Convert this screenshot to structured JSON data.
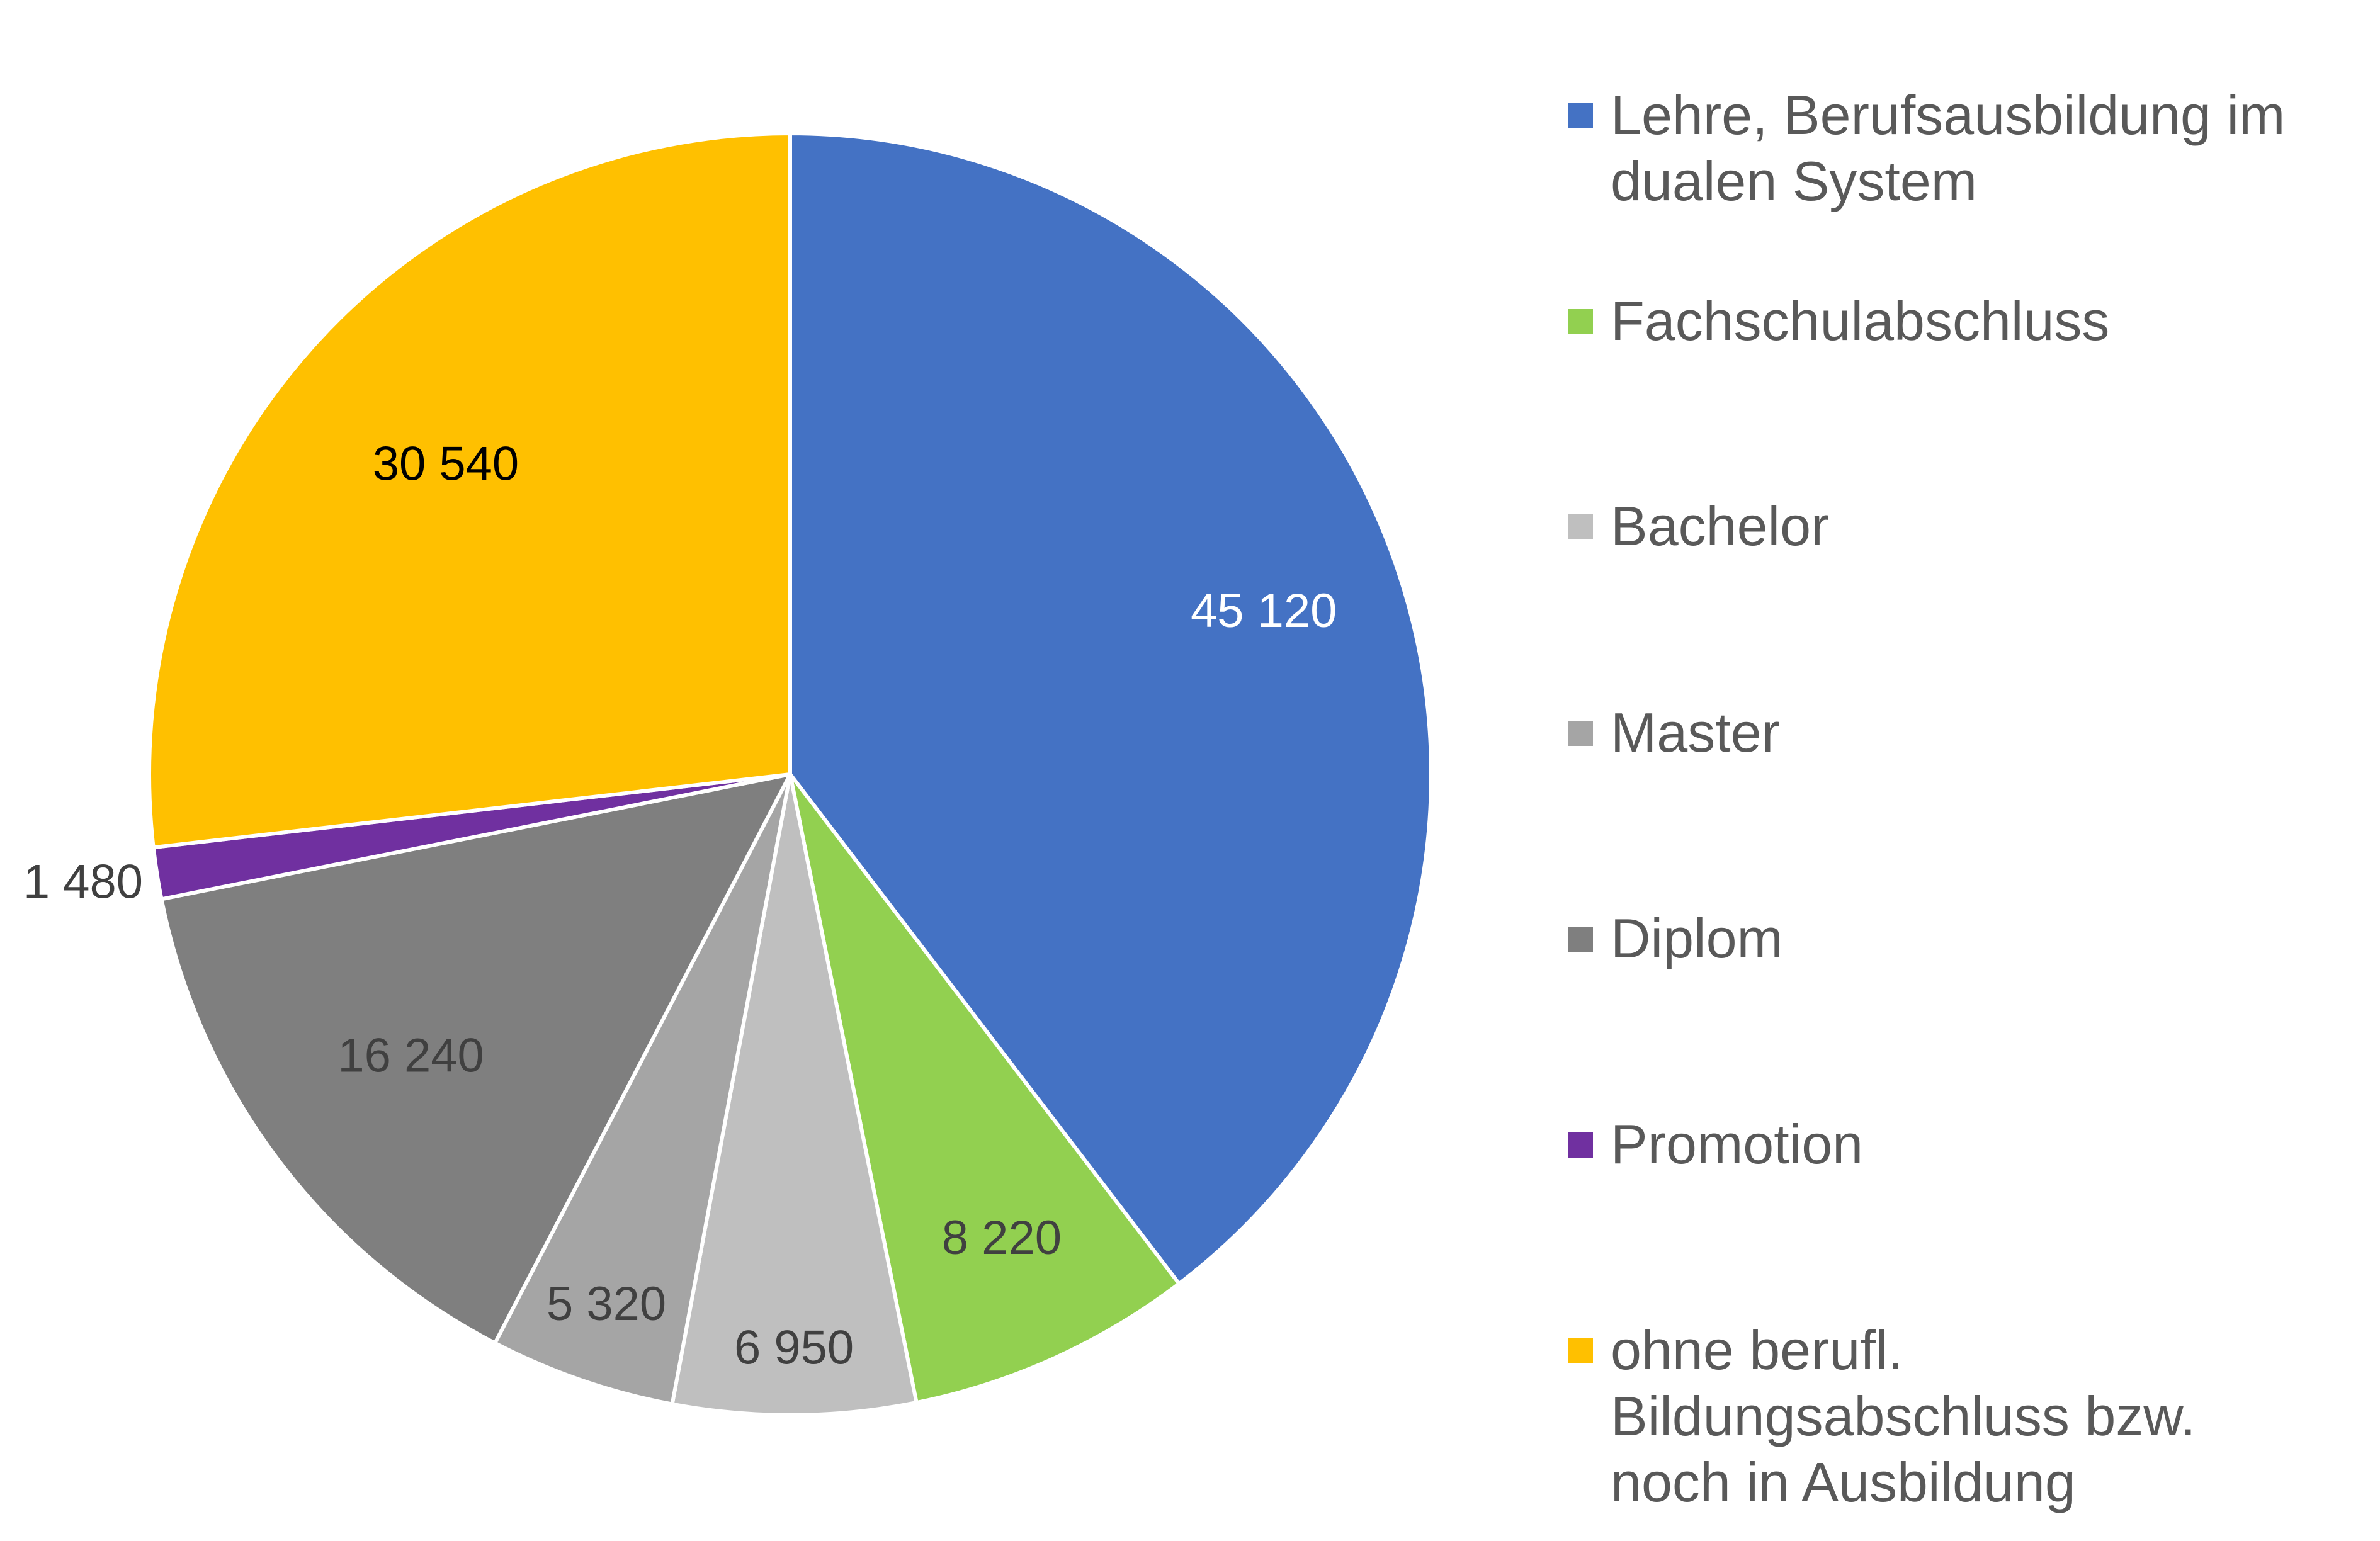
{
  "chart_data": {
    "type": "pie",
    "title": "",
    "categories": [
      "Lehre, Berufsausbildung im dualen System",
      "Fachschulabschluss",
      "Bachelor",
      "Master",
      "Diplom",
      "Promotion",
      "ohne berufl. Bildungsabschluss bzw. noch in Ausbildung"
    ],
    "values": [
      45120,
      8220,
      6950,
      5320,
      16240,
      1480,
      30540
    ],
    "value_labels": [
      "45 120",
      "8 220",
      "6 950",
      "5 320",
      "16 240",
      "1 480",
      "30 540"
    ],
    "colors": [
      "#4472C4",
      "#92D050",
      "#BFBFBF",
      "#A5A5A5",
      "#7F7F7F",
      "#7030A0",
      "#FFC000"
    ],
    "label_colors": [
      "#FFFFFF",
      "#404040",
      "#404040",
      "#404040",
      "#404040",
      "#404040",
      "#000000"
    ],
    "legend_placement": "right",
    "slice_order": "clockwise from 12 o'clock"
  },
  "legend": {
    "items": [
      {
        "label": "Lehre, Berufsausbildung im\ndualen System",
        "color": "#4472C4"
      },
      {
        "label": "Fachschulabschluss",
        "color": "#92D050"
      },
      {
        "label": "Bachelor",
        "color": "#BFBFBF"
      },
      {
        "label": "Master",
        "color": "#A5A5A5"
      },
      {
        "label": "Diplom",
        "color": "#7F7F7F"
      },
      {
        "label": "Promotion",
        "color": "#7030A0"
      },
      {
        "label": "ohne berufl.\nBildungsabschluss bzw.\nnoch in Ausbildung",
        "color": "#FFC000"
      }
    ]
  }
}
